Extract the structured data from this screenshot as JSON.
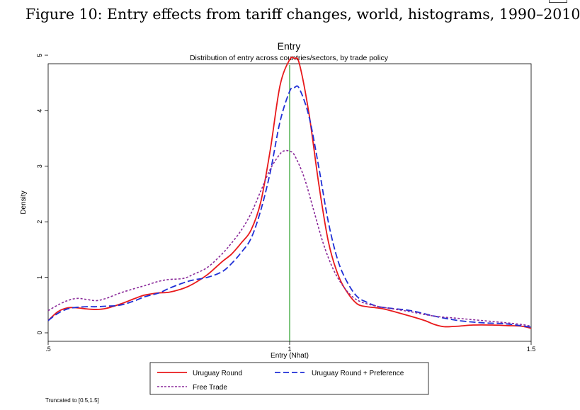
{
  "figure": {
    "title": "Figure 10: Entry effects from tariff changes, world, histograms, 1990–2010",
    "footnote": "Truncated to [0.5,1.5]"
  },
  "colors": {
    "uruguay_round": "#e8191b",
    "uruguay_preference": "#1f2fd6",
    "free_trade": "#8a2a9a",
    "vline": "#2aa02a",
    "axis": "#000000"
  },
  "chart_data": {
    "type": "line",
    "title": "Entry",
    "subtitle": "Distribution of entry across countries/sectors, by trade policy",
    "xlabel": "Entry (Nhat)",
    "ylabel": "Density",
    "xlim": [
      0.5,
      1.5
    ],
    "ylim": [
      0,
      5
    ],
    "xticks": [
      {
        "value": 0.5,
        "label": ".5"
      },
      {
        "value": 1,
        "label": "1"
      },
      {
        "value": 1.5,
        "label": "1.5"
      }
    ],
    "yticks": [
      0,
      1,
      2,
      3,
      4,
      5
    ],
    "reference_line_x": 1,
    "legend_position": "bottom",
    "series": [
      {
        "name": "Uruguay Round",
        "style": "solid",
        "points": [
          [
            0.5,
            0.22
          ],
          [
            0.52,
            0.38
          ],
          [
            0.54,
            0.45
          ],
          [
            0.56,
            0.45
          ],
          [
            0.58,
            0.43
          ],
          [
            0.6,
            0.42
          ],
          [
            0.62,
            0.44
          ],
          [
            0.65,
            0.52
          ],
          [
            0.68,
            0.62
          ],
          [
            0.7,
            0.68
          ],
          [
            0.73,
            0.72
          ],
          [
            0.75,
            0.73
          ],
          [
            0.78,
            0.8
          ],
          [
            0.8,
            0.88
          ],
          [
            0.83,
            1.05
          ],
          [
            0.86,
            1.28
          ],
          [
            0.88,
            1.42
          ],
          [
            0.9,
            1.62
          ],
          [
            0.92,
            1.85
          ],
          [
            0.94,
            2.35
          ],
          [
            0.96,
            3.3
          ],
          [
            0.98,
            4.45
          ],
          [
            1.0,
            4.92
          ],
          [
            1.01,
            4.94
          ],
          [
            1.02,
            4.85
          ],
          [
            1.04,
            3.95
          ],
          [
            1.06,
            2.7
          ],
          [
            1.08,
            1.65
          ],
          [
            1.1,
            1.05
          ],
          [
            1.12,
            0.72
          ],
          [
            1.14,
            0.52
          ],
          [
            1.16,
            0.47
          ],
          [
            1.18,
            0.45
          ],
          [
            1.2,
            0.42
          ],
          [
            1.25,
            0.3
          ],
          [
            1.28,
            0.22
          ],
          [
            1.3,
            0.15
          ],
          [
            1.32,
            0.11
          ],
          [
            1.35,
            0.12
          ],
          [
            1.38,
            0.14
          ],
          [
            1.42,
            0.14
          ],
          [
            1.45,
            0.13
          ],
          [
            1.48,
            0.12
          ],
          [
            1.5,
            0.08
          ]
        ]
      },
      {
        "name": "Uruguay Round + Preference",
        "style": "dash",
        "points": [
          [
            0.5,
            0.22
          ],
          [
            0.52,
            0.35
          ],
          [
            0.54,
            0.43
          ],
          [
            0.56,
            0.46
          ],
          [
            0.58,
            0.47
          ],
          [
            0.6,
            0.47
          ],
          [
            0.62,
            0.48
          ],
          [
            0.65,
            0.5
          ],
          [
            0.68,
            0.58
          ],
          [
            0.7,
            0.65
          ],
          [
            0.73,
            0.72
          ],
          [
            0.75,
            0.8
          ],
          [
            0.78,
            0.9
          ],
          [
            0.8,
            0.95
          ],
          [
            0.83,
            1.0
          ],
          [
            0.86,
            1.1
          ],
          [
            0.88,
            1.25
          ],
          [
            0.9,
            1.45
          ],
          [
            0.92,
            1.7
          ],
          [
            0.94,
            2.2
          ],
          [
            0.96,
            2.9
          ],
          [
            0.98,
            3.8
          ],
          [
            1.0,
            4.35
          ],
          [
            1.01,
            4.42
          ],
          [
            1.02,
            4.4
          ],
          [
            1.04,
            3.9
          ],
          [
            1.06,
            3.0
          ],
          [
            1.08,
            2.0
          ],
          [
            1.1,
            1.3
          ],
          [
            1.12,
            0.9
          ],
          [
            1.14,
            0.65
          ],
          [
            1.16,
            0.55
          ],
          [
            1.18,
            0.48
          ],
          [
            1.2,
            0.45
          ],
          [
            1.25,
            0.4
          ],
          [
            1.3,
            0.3
          ],
          [
            1.35,
            0.22
          ],
          [
            1.4,
            0.18
          ],
          [
            1.45,
            0.16
          ],
          [
            1.5,
            0.1
          ]
        ]
      },
      {
        "name": "Free Trade",
        "style": "dot",
        "points": [
          [
            0.5,
            0.4
          ],
          [
            0.52,
            0.5
          ],
          [
            0.54,
            0.58
          ],
          [
            0.56,
            0.62
          ],
          [
            0.58,
            0.6
          ],
          [
            0.6,
            0.58
          ],
          [
            0.62,
            0.62
          ],
          [
            0.65,
            0.72
          ],
          [
            0.68,
            0.8
          ],
          [
            0.7,
            0.85
          ],
          [
            0.73,
            0.93
          ],
          [
            0.75,
            0.96
          ],
          [
            0.78,
            0.98
          ],
          [
            0.8,
            1.05
          ],
          [
            0.83,
            1.18
          ],
          [
            0.86,
            1.42
          ],
          [
            0.88,
            1.62
          ],
          [
            0.9,
            1.85
          ],
          [
            0.92,
            2.15
          ],
          [
            0.94,
            2.55
          ],
          [
            0.96,
            2.95
          ],
          [
            0.98,
            3.22
          ],
          [
            0.99,
            3.28
          ],
          [
            1.0,
            3.27
          ],
          [
            1.01,
            3.2
          ],
          [
            1.03,
            2.8
          ],
          [
            1.05,
            2.2
          ],
          [
            1.07,
            1.6
          ],
          [
            1.09,
            1.15
          ],
          [
            1.11,
            0.85
          ],
          [
            1.13,
            0.65
          ],
          [
            1.15,
            0.55
          ],
          [
            1.18,
            0.48
          ],
          [
            1.2,
            0.45
          ],
          [
            1.25,
            0.38
          ],
          [
            1.3,
            0.3
          ],
          [
            1.35,
            0.26
          ],
          [
            1.4,
            0.22
          ],
          [
            1.45,
            0.18
          ],
          [
            1.48,
            0.15
          ],
          [
            1.5,
            0.12
          ]
        ]
      }
    ]
  }
}
